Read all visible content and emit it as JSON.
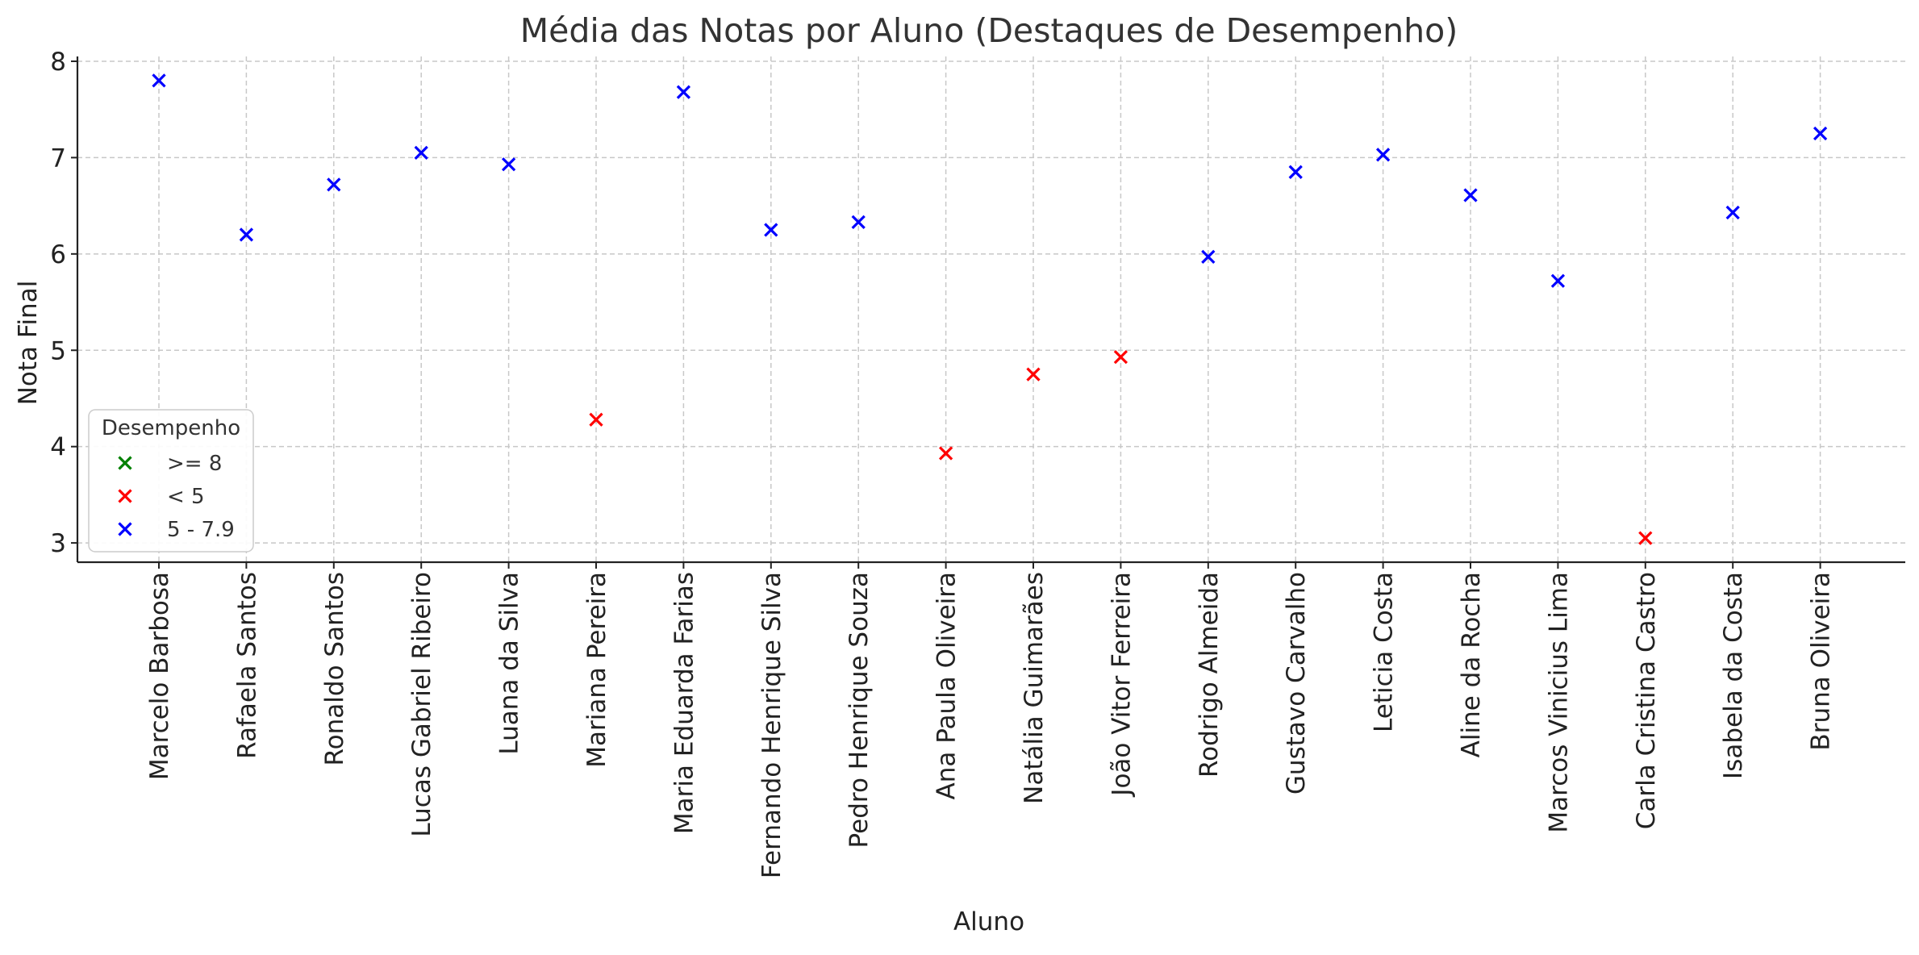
{
  "chart_data": {
    "type": "scatter",
    "title": "Média das Notas por Aluno (Destaques de Desempenho)",
    "xlabel": "Aluno",
    "ylabel": "Nota Final",
    "ylim": [
      2.8,
      8.05
    ],
    "yticks": [
      3,
      4,
      5,
      6,
      7,
      8
    ],
    "grid": true,
    "marker": "x",
    "legend": {
      "title": "Desempenho",
      "placement": "lower-left",
      "entries": [
        {
          "label": ">= 8",
          "color": "#008000"
        },
        {
          "label": "< 5",
          "color": "#ff0000"
        },
        {
          "label": "5 - 7.9",
          "color": "#0000ff"
        }
      ]
    },
    "categories": [
      "Marcelo Barbosa",
      "Rafaela Santos",
      "Ronaldo Santos",
      "Lucas Gabriel Ribeiro",
      "Luana da Silva",
      "Mariana Pereira",
      "Maria Eduarda Farias",
      "Fernando Henrique Silva",
      "Pedro Henrique Souza",
      "Ana Paula Oliveira",
      "Natália Guimarães",
      "João Vitor Ferreira",
      "Rodrigo Almeida",
      "Gustavo Carvalho",
      "Leticia Costa",
      "Aline da Rocha",
      "Marcos Vinicius Lima",
      "Carla Cristina Castro",
      "Isabela da Costa",
      "Bruna Oliveira"
    ],
    "values": [
      7.8,
      6.2,
      6.72,
      7.05,
      6.93,
      4.28,
      7.68,
      6.25,
      6.33,
      3.93,
      4.75,
      4.93,
      5.97,
      6.85,
      7.03,
      6.61,
      5.72,
      3.05,
      6.43,
      7.25
    ],
    "groups": [
      "5 - 7.9",
      "5 - 7.9",
      "5 - 7.9",
      "5 - 7.9",
      "5 - 7.9",
      "< 5",
      "5 - 7.9",
      "5 - 7.9",
      "5 - 7.9",
      "< 5",
      "< 5",
      "< 5",
      "5 - 7.9",
      "5 - 7.9",
      "5 - 7.9",
      "5 - 7.9",
      "5 - 7.9",
      "< 5",
      "5 - 7.9",
      "5 - 7.9"
    ]
  }
}
